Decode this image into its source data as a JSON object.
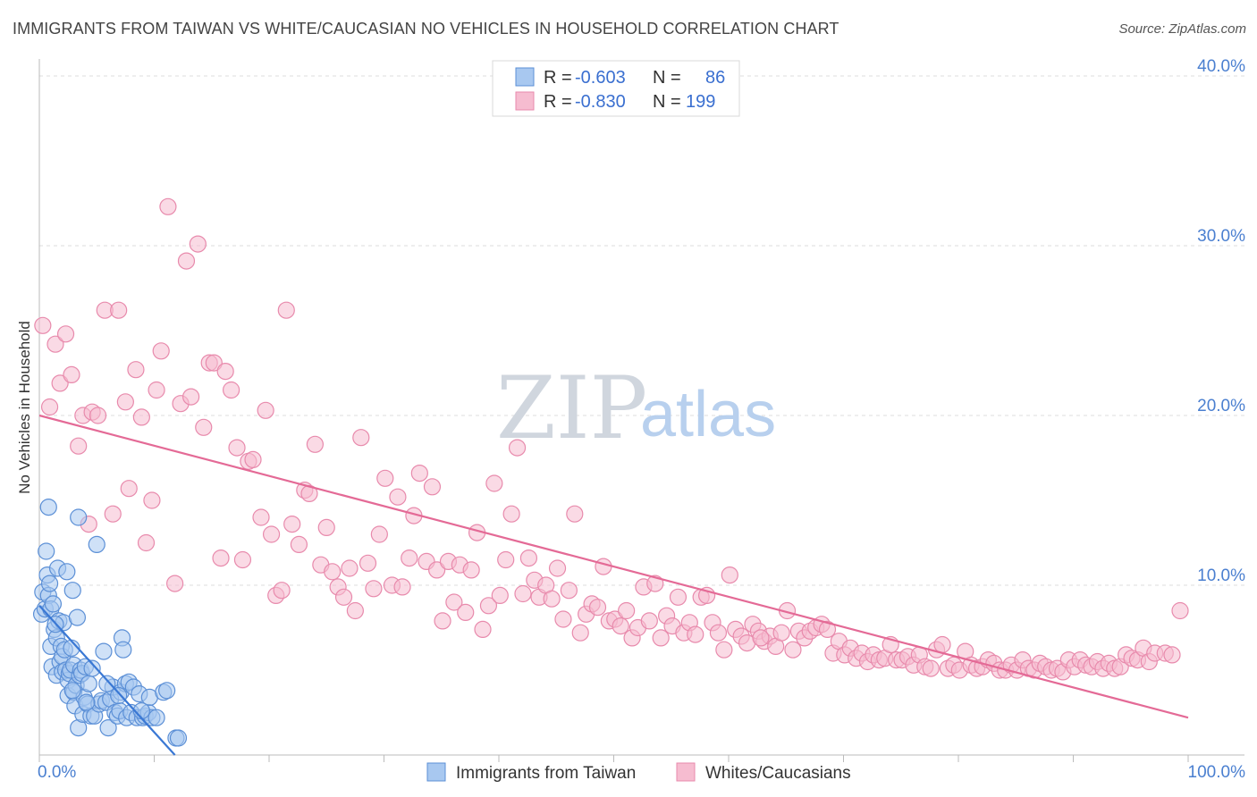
{
  "title": "IMMIGRANTS FROM TAIWAN VS WHITE/CAUCASIAN NO VEHICLES IN HOUSEHOLD CORRELATION CHART",
  "source": "Source: ZipAtlas.com",
  "watermark": {
    "zip": "ZIP",
    "atlas": "atlas"
  },
  "colors": {
    "blue_fill": "#a8c8f0",
    "blue_stroke": "#5b8fd6",
    "blue_line": "#3a78d4",
    "pink_fill": "#f6bcd0",
    "pink_stroke": "#e88aac",
    "pink_line": "#e46a96",
    "tick_text": "#4a7fd0",
    "grid": "#dddddd"
  },
  "legend": {
    "rows": [
      {
        "r_label": "R =",
        "r_value": "-0.603",
        "n_label": "N =",
        "n_value": "86"
      },
      {
        "r_label": "R =",
        "r_value": "-0.830",
        "n_label": "N =",
        "n_value": "199"
      }
    ]
  },
  "bottom_legend": [
    "Immigrants from Taiwan",
    "Whites/Caucasians"
  ],
  "chart_data": {
    "type": "scatter",
    "title": "IMMIGRANTS FROM TAIWAN VS WHITE/CAUCASIAN NO VEHICLES IN HOUSEHOLD CORRELATION CHART",
    "xlabel": "",
    "ylabel": "No Vehicles in Household",
    "xlim": [
      0,
      100
    ],
    "ylim": [
      0,
      41
    ],
    "x_tick_labels": [
      {
        "value": 0,
        "label": "0.0%"
      },
      {
        "value": 100,
        "label": "100.0%"
      }
    ],
    "y_ticks": [
      {
        "value": 10,
        "label": "10.0%"
      },
      {
        "value": 20,
        "label": "20.0%"
      },
      {
        "value": 30,
        "label": "30.0%"
      },
      {
        "value": 40,
        "label": "40.0%"
      }
    ],
    "series": [
      {
        "name": "Immigrants from Taiwan",
        "r": -0.603,
        "n": 86,
        "trendline": {
          "x": [
            0,
            11.8
          ],
          "y": [
            8.8,
            0.0
          ]
        },
        "points": [
          [
            0.2,
            8.3
          ],
          [
            0.3,
            9.6
          ],
          [
            0.5,
            8.6
          ],
          [
            0.6,
            12.0
          ],
          [
            0.7,
            10.6
          ],
          [
            0.8,
            14.6
          ],
          [
            0.8,
            9.4
          ],
          [
            0.9,
            10.1
          ],
          [
            1.0,
            8.6
          ],
          [
            1.0,
            6.4
          ],
          [
            1.1,
            5.2
          ],
          [
            1.2,
            8.9
          ],
          [
            1.3,
            7.4
          ],
          [
            1.5,
            6.9
          ],
          [
            1.5,
            4.7
          ],
          [
            1.6,
            11.0
          ],
          [
            1.7,
            7.9
          ],
          [
            1.8,
            5.5
          ],
          [
            1.9,
            6.4
          ],
          [
            2.0,
            5.8
          ],
          [
            2.0,
            4.9
          ],
          [
            2.1,
            7.8
          ],
          [
            2.2,
            6.2
          ],
          [
            2.3,
            5.0
          ],
          [
            2.4,
            10.8
          ],
          [
            2.5,
            4.4
          ],
          [
            2.5,
            3.5
          ],
          [
            2.6,
            4.8
          ],
          [
            2.7,
            5.0
          ],
          [
            2.8,
            6.3
          ],
          [
            2.9,
            9.7
          ],
          [
            3.0,
            3.7
          ],
          [
            3.0,
            5.3
          ],
          [
            3.1,
            2.9
          ],
          [
            3.2,
            4.1
          ],
          [
            3.3,
            8.1
          ],
          [
            3.4,
            1.6
          ],
          [
            3.4,
            14.0
          ],
          [
            3.5,
            4.7
          ],
          [
            3.6,
            5.0
          ],
          [
            3.7,
            4.8
          ],
          [
            3.8,
            2.4
          ],
          [
            3.9,
            3.4
          ],
          [
            4.0,
            5.2
          ],
          [
            4.2,
            3.0
          ],
          [
            4.3,
            4.2
          ],
          [
            4.5,
            2.3
          ],
          [
            4.6,
            5.1
          ],
          [
            4.8,
            2.3
          ],
          [
            5.0,
            12.4
          ],
          [
            5.2,
            3.0
          ],
          [
            5.4,
            3.2
          ],
          [
            5.6,
            6.1
          ],
          [
            5.8,
            3.1
          ],
          [
            6.0,
            1.6
          ],
          [
            6.2,
            3.3
          ],
          [
            6.4,
            4.0
          ],
          [
            6.6,
            2.5
          ],
          [
            6.8,
            2.3
          ],
          [
            7.0,
            2.6
          ],
          [
            7.1,
            3.7
          ],
          [
            7.2,
            6.9
          ],
          [
            7.3,
            6.2
          ],
          [
            7.5,
            4.2
          ],
          [
            7.6,
            2.2
          ],
          [
            7.8,
            4.3
          ],
          [
            8.0,
            2.5
          ],
          [
            8.2,
            4.0
          ],
          [
            8.5,
            2.2
          ],
          [
            8.7,
            3.6
          ],
          [
            9.0,
            2.2
          ],
          [
            9.2,
            2.3
          ],
          [
            9.5,
            2.5
          ],
          [
            9.6,
            3.4
          ],
          [
            9.8,
            2.2
          ],
          [
            10.2,
            2.2
          ],
          [
            10.8,
            3.7
          ],
          [
            11.1,
            3.8
          ],
          [
            11.9,
            1.0
          ],
          [
            12.1,
            1.0
          ],
          [
            1.4,
            7.7
          ],
          [
            2.9,
            3.8
          ],
          [
            4.1,
            3.1
          ],
          [
            5.9,
            4.2
          ],
          [
            6.9,
            3.5
          ],
          [
            8.9,
            2.6
          ]
        ]
      },
      {
        "name": "Whites/Caucasians",
        "r": -0.83,
        "n": 199,
        "trendline": {
          "x": [
            0,
            100
          ],
          "y": [
            20.0,
            2.2
          ]
        },
        "points": [
          [
            0.3,
            25.3
          ],
          [
            0.9,
            20.5
          ],
          [
            1.4,
            24.2
          ],
          [
            1.8,
            21.9
          ],
          [
            2.3,
            24.8
          ],
          [
            2.8,
            22.4
          ],
          [
            3.4,
            18.2
          ],
          [
            3.8,
            20.0
          ],
          [
            4.3,
            13.6
          ],
          [
            4.6,
            20.2
          ],
          [
            5.1,
            20.0
          ],
          [
            5.7,
            26.2
          ],
          [
            6.4,
            14.2
          ],
          [
            6.9,
            26.2
          ],
          [
            7.5,
            20.8
          ],
          [
            7.8,
            15.7
          ],
          [
            8.4,
            22.7
          ],
          [
            8.9,
            19.9
          ],
          [
            9.3,
            12.5
          ],
          [
            9.8,
            15.0
          ],
          [
            10.2,
            21.5
          ],
          [
            10.6,
            23.8
          ],
          [
            11.2,
            32.3
          ],
          [
            11.8,
            10.1
          ],
          [
            12.3,
            20.7
          ],
          [
            12.8,
            29.1
          ],
          [
            13.2,
            21.1
          ],
          [
            13.8,
            30.1
          ],
          [
            14.3,
            19.3
          ],
          [
            14.8,
            23.1
          ],
          [
            15.2,
            23.1
          ],
          [
            15.8,
            11.6
          ],
          [
            16.2,
            22.6
          ],
          [
            16.7,
            21.5
          ],
          [
            17.2,
            18.1
          ],
          [
            17.7,
            11.5
          ],
          [
            18.2,
            17.3
          ],
          [
            18.6,
            17.4
          ],
          [
            19.3,
            14.0
          ],
          [
            19.7,
            20.3
          ],
          [
            20.2,
            13.0
          ],
          [
            20.6,
            9.4
          ],
          [
            21.1,
            9.7
          ],
          [
            21.5,
            26.2
          ],
          [
            22.0,
            13.6
          ],
          [
            22.6,
            12.4
          ],
          [
            23.1,
            15.6
          ],
          [
            23.5,
            15.4
          ],
          [
            24.0,
            18.3
          ],
          [
            24.5,
            11.2
          ],
          [
            25.0,
            13.4
          ],
          [
            25.5,
            10.8
          ],
          [
            26.0,
            9.9
          ],
          [
            26.5,
            9.3
          ],
          [
            27.0,
            11.0
          ],
          [
            27.5,
            8.5
          ],
          [
            28.0,
            18.7
          ],
          [
            28.6,
            11.3
          ],
          [
            29.1,
            9.8
          ],
          [
            29.6,
            13.0
          ],
          [
            30.1,
            16.3
          ],
          [
            30.7,
            10.0
          ],
          [
            31.2,
            15.2
          ],
          [
            31.6,
            9.9
          ],
          [
            32.2,
            11.6
          ],
          [
            32.6,
            14.1
          ],
          [
            33.1,
            16.6
          ],
          [
            33.7,
            11.4
          ],
          [
            34.2,
            15.8
          ],
          [
            34.6,
            10.9
          ],
          [
            35.1,
            7.9
          ],
          [
            35.6,
            11.4
          ],
          [
            36.1,
            9.0
          ],
          [
            36.6,
            11.2
          ],
          [
            37.1,
            8.4
          ],
          [
            37.6,
            10.9
          ],
          [
            38.1,
            13.1
          ],
          [
            38.6,
            7.4
          ],
          [
            39.1,
            8.8
          ],
          [
            39.6,
            16.0
          ],
          [
            40.1,
            9.4
          ],
          [
            40.6,
            11.5
          ],
          [
            41.1,
            14.2
          ],
          [
            41.6,
            18.1
          ],
          [
            42.1,
            9.5
          ],
          [
            42.6,
            11.6
          ],
          [
            43.1,
            10.3
          ],
          [
            43.5,
            9.3
          ],
          [
            44.1,
            10.0
          ],
          [
            44.6,
            9.2
          ],
          [
            45.1,
            11.0
          ],
          [
            45.6,
            8.0
          ],
          [
            46.1,
            9.7
          ],
          [
            46.6,
            14.2
          ],
          [
            47.1,
            7.2
          ],
          [
            47.6,
            8.3
          ],
          [
            48.1,
            8.9
          ],
          [
            48.6,
            8.7
          ],
          [
            49.1,
            11.1
          ],
          [
            49.6,
            7.9
          ],
          [
            50.1,
            8.0
          ],
          [
            50.6,
            7.6
          ],
          [
            51.1,
            8.5
          ],
          [
            51.6,
            6.9
          ],
          [
            52.1,
            7.5
          ],
          [
            52.6,
            9.9
          ],
          [
            53.1,
            7.9
          ],
          [
            53.6,
            10.1
          ],
          [
            54.1,
            6.9
          ],
          [
            54.6,
            8.2
          ],
          [
            55.1,
            7.6
          ],
          [
            55.6,
            9.3
          ],
          [
            56.1,
            7.2
          ],
          [
            56.6,
            7.8
          ],
          [
            57.1,
            7.1
          ],
          [
            57.6,
            9.3
          ],
          [
            58.1,
            9.4
          ],
          [
            58.6,
            7.8
          ],
          [
            59.1,
            7.2
          ],
          [
            59.6,
            6.2
          ],
          [
            60.1,
            10.6
          ],
          [
            60.6,
            7.4
          ],
          [
            61.1,
            7.0
          ],
          [
            61.6,
            6.6
          ],
          [
            62.1,
            7.7
          ],
          [
            62.6,
            7.3
          ],
          [
            63.1,
            6.7
          ],
          [
            63.6,
            7.0
          ],
          [
            64.1,
            6.4
          ],
          [
            64.6,
            7.2
          ],
          [
            65.1,
            8.5
          ],
          [
            65.6,
            6.2
          ],
          [
            66.1,
            7.3
          ],
          [
            66.6,
            6.9
          ],
          [
            67.1,
            7.3
          ],
          [
            67.6,
            7.5
          ],
          [
            68.1,
            7.7
          ],
          [
            68.6,
            7.4
          ],
          [
            69.1,
            6.0
          ],
          [
            69.6,
            6.7
          ],
          [
            70.1,
            5.9
          ],
          [
            70.6,
            6.3
          ],
          [
            71.1,
            5.7
          ],
          [
            71.6,
            6.0
          ],
          [
            72.1,
            5.5
          ],
          [
            72.6,
            5.9
          ],
          [
            73.1,
            5.6
          ],
          [
            73.6,
            5.7
          ],
          [
            74.1,
            6.5
          ],
          [
            74.6,
            5.6
          ],
          [
            75.1,
            5.6
          ],
          [
            75.6,
            5.8
          ],
          [
            76.1,
            5.3
          ],
          [
            76.6,
            5.9
          ],
          [
            77.1,
            5.2
          ],
          [
            77.6,
            5.1
          ],
          [
            78.1,
            6.2
          ],
          [
            78.6,
            6.5
          ],
          [
            79.1,
            5.1
          ],
          [
            79.6,
            5.3
          ],
          [
            80.1,
            5.0
          ],
          [
            80.6,
            6.1
          ],
          [
            81.1,
            5.3
          ],
          [
            81.6,
            5.1
          ],
          [
            82.1,
            5.2
          ],
          [
            82.6,
            5.6
          ],
          [
            83.1,
            5.4
          ],
          [
            83.6,
            5.0
          ],
          [
            84.1,
            5.0
          ],
          [
            84.6,
            5.3
          ],
          [
            85.1,
            5.0
          ],
          [
            85.6,
            5.6
          ],
          [
            86.1,
            5.1
          ],
          [
            86.6,
            5.0
          ],
          [
            87.1,
            5.4
          ],
          [
            87.6,
            5.2
          ],
          [
            88.1,
            5.0
          ],
          [
            88.6,
            5.1
          ],
          [
            89.1,
            4.9
          ],
          [
            89.6,
            5.6
          ],
          [
            90.1,
            5.2
          ],
          [
            90.6,
            5.6
          ],
          [
            91.1,
            5.3
          ],
          [
            91.6,
            5.2
          ],
          [
            92.1,
            5.5
          ],
          [
            92.6,
            5.1
          ],
          [
            93.1,
            5.4
          ],
          [
            93.6,
            5.1
          ],
          [
            94.1,
            5.2
          ],
          [
            94.6,
            5.9
          ],
          [
            95.1,
            5.7
          ],
          [
            95.6,
            5.6
          ],
          [
            96.1,
            6.3
          ],
          [
            96.6,
            5.5
          ],
          [
            97.1,
            6.0
          ],
          [
            98.0,
            6.0
          ],
          [
            98.6,
            5.9
          ],
          [
            99.3,
            8.5
          ],
          [
            62.8,
            6.9
          ]
        ]
      }
    ]
  }
}
